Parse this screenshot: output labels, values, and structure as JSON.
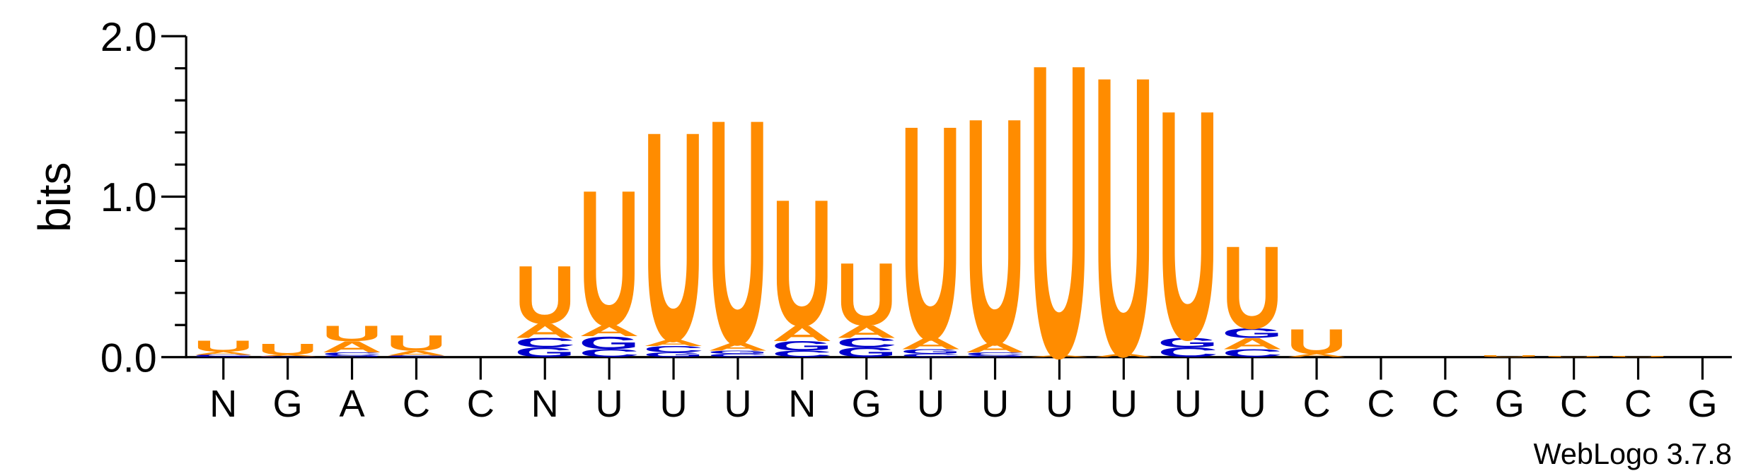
{
  "chart_data": {
    "type": "logo",
    "ylabel": "bits",
    "footer": "WebLogo 3.7.8",
    "categories": [
      "N",
      "G",
      "A",
      "C",
      "C",
      "N",
      "U",
      "U",
      "U",
      "N",
      "G",
      "U",
      "U",
      "U",
      "U",
      "U",
      "U",
      "C",
      "C",
      "C",
      "G",
      "C",
      "C",
      "G"
    ],
    "colors": {
      "A": "#ff8c00",
      "U": "#ff8c00",
      "C": "#0000cc",
      "G": "#0000cc"
    },
    "ylim": [
      0,
      2
    ],
    "yticks": [
      {
        "value": 0,
        "label": "0.0"
      },
      {
        "value": 1,
        "label": "1.0"
      },
      {
        "value": 2,
        "label": "2.0"
      }
    ],
    "yminorticks": [
      0.2,
      0.4,
      0.6,
      0.8,
      1.2,
      1.4,
      1.6,
      1.8
    ],
    "stacks": [
      [
        {
          "letter": "G",
          "value": 0.005
        },
        {
          "letter": "C",
          "value": 0.01
        },
        {
          "letter": "A",
          "value": 0.02
        },
        {
          "letter": "U",
          "value": 0.07
        }
      ],
      [
        {
          "letter": "C",
          "value": 0.005
        },
        {
          "letter": "A",
          "value": 0.01
        },
        {
          "letter": "U",
          "value": 0.07
        }
      ],
      [
        {
          "letter": "G",
          "value": 0.01
        },
        {
          "letter": "C",
          "value": 0.02
        },
        {
          "letter": "A",
          "value": 0.07
        },
        {
          "letter": "U",
          "value": 0.1
        }
      ],
      [
        {
          "letter": "C",
          "value": 0.01
        },
        {
          "letter": "A",
          "value": 0.03
        },
        {
          "letter": "U",
          "value": 0.1
        }
      ],
      [],
      [
        {
          "letter": "G",
          "value": 0.06
        },
        {
          "letter": "C",
          "value": 0.06
        },
        {
          "letter": "A",
          "value": 0.09
        },
        {
          "letter": "U",
          "value": 0.37
        }
      ],
      [
        {
          "letter": "C",
          "value": 0.05
        },
        {
          "letter": "G",
          "value": 0.08
        },
        {
          "letter": "A",
          "value": 0.07
        },
        {
          "letter": "U",
          "value": 0.87
        }
      ],
      [
        {
          "letter": "G",
          "value": 0.03
        },
        {
          "letter": "C",
          "value": 0.04
        },
        {
          "letter": "A",
          "value": 0.04
        },
        {
          "letter": "U",
          "value": 1.34
        }
      ],
      [
        {
          "letter": "C",
          "value": 0.02
        },
        {
          "letter": "G",
          "value": 0.02
        },
        {
          "letter": "A",
          "value": 0.05
        },
        {
          "letter": "U",
          "value": 1.44
        }
      ],
      [
        {
          "letter": "C",
          "value": 0.04
        },
        {
          "letter": "G",
          "value": 0.06
        },
        {
          "letter": "A",
          "value": 0.1
        },
        {
          "letter": "U",
          "value": 0.81
        }
      ],
      [
        {
          "letter": "G",
          "value": 0.06
        },
        {
          "letter": "C",
          "value": 0.06
        },
        {
          "letter": "A",
          "value": 0.08
        },
        {
          "letter": "U",
          "value": 0.4
        }
      ],
      [
        {
          "letter": "C",
          "value": 0.02
        },
        {
          "letter": "G",
          "value": 0.03
        },
        {
          "letter": "A",
          "value": 0.07
        },
        {
          "letter": "U",
          "value": 1.37
        }
      ],
      [
        {
          "letter": "G",
          "value": 0.01
        },
        {
          "letter": "C",
          "value": 0.02
        },
        {
          "letter": "A",
          "value": 0.06
        },
        {
          "letter": "U",
          "value": 1.45
        }
      ],
      [
        {
          "letter": "A",
          "value": 0.01
        },
        {
          "letter": "U",
          "value": 1.88
        }
      ],
      [
        {
          "letter": "A",
          "value": 0.02
        },
        {
          "letter": "U",
          "value": 1.79
        }
      ],
      [
        {
          "letter": "C",
          "value": 0.06
        },
        {
          "letter": "G",
          "value": 0.06
        },
        {
          "letter": "U",
          "value": 1.47
        }
      ],
      [
        {
          "letter": "C",
          "value": 0.05
        },
        {
          "letter": "A",
          "value": 0.07
        },
        {
          "letter": "G",
          "value": 0.06
        },
        {
          "letter": "U",
          "value": 0.53
        }
      ],
      [
        {
          "letter": "A",
          "value": 0.02
        },
        {
          "letter": "U",
          "value": 0.16
        }
      ],
      [],
      [],
      [
        {
          "letter": "U",
          "value": 0.01
        }
      ],
      [
        {
          "letter": "U",
          "value": 0.005
        }
      ],
      [
        {
          "letter": "U",
          "value": 0.005
        }
      ],
      []
    ]
  }
}
